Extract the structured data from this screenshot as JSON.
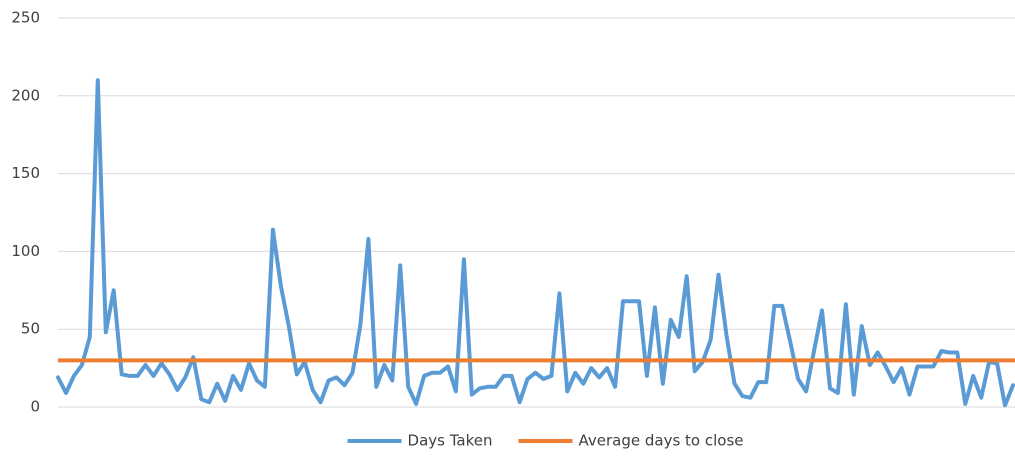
{
  "chart_data": {
    "type": "line",
    "categories": [
      null,
      null,
      null,
      null,
      null,
      null,
      null,
      null,
      null,
      null,
      null,
      null,
      null,
      null,
      null,
      null,
      null,
      null,
      null,
      null,
      null,
      null,
      null,
      null,
      null,
      null,
      null,
      null,
      null,
      null,
      null,
      null,
      null,
      null,
      null,
      null,
      null,
      null,
      null,
      null,
      null,
      null,
      null,
      null,
      null,
      null,
      null,
      null,
      null,
      null,
      null,
      null,
      null,
      null,
      null,
      null,
      null,
      null,
      null,
      null,
      null,
      null,
      null,
      null,
      null,
      null,
      null,
      null,
      null,
      null,
      null,
      null,
      null,
      null,
      null,
      null,
      null,
      null,
      null,
      null,
      null,
      null,
      null,
      null,
      null,
      null,
      null,
      null,
      null,
      null,
      null,
      null,
      null,
      null,
      null,
      null,
      null,
      null,
      null,
      null,
      null,
      null,
      null,
      null,
      null,
      null,
      null,
      null,
      null,
      null,
      null,
      null,
      null,
      null,
      null,
      null,
      null,
      null,
      null,
      null,
      null
    ],
    "series": [
      {
        "name": "Days Taken",
        "color": "#5b9bd5",
        "values": [
          19,
          9,
          20,
          27,
          45,
          210,
          48,
          75,
          21,
          20,
          20,
          27,
          20,
          28,
          21,
          11,
          19,
          32,
          5,
          3,
          15,
          4,
          20,
          11,
          28,
          17,
          13,
          114,
          78,
          52,
          21,
          29,
          11,
          3,
          17,
          19,
          14,
          22,
          53,
          108,
          13,
          27,
          17,
          91,
          13,
          2,
          20,
          22,
          22,
          26,
          10,
          95,
          8,
          12,
          13,
          13,
          20,
          20,
          3,
          18,
          22,
          18,
          20,
          73,
          10,
          22,
          15,
          25,
          19,
          25,
          13,
          68,
          68,
          68,
          20,
          64,
          15,
          56,
          45,
          84,
          23,
          29,
          43,
          85,
          46,
          15,
          7,
          6,
          16,
          16,
          65,
          65,
          42,
          18,
          10,
          36,
          62,
          12,
          9,
          66,
          8,
          52,
          27,
          35,
          26,
          16,
          25,
          8,
          26,
          26,
          26,
          36,
          35,
          35,
          2,
          20,
          6,
          29,
          28,
          1,
          14
        ]
      },
      {
        "name": "Average days to close",
        "color": "#ed7d31",
        "value": 30
      }
    ],
    "ylim": [
      0,
      250
    ],
    "yticks": [
      0,
      50,
      100,
      150,
      200,
      250
    ],
    "grid": true,
    "legend": "bottom"
  }
}
